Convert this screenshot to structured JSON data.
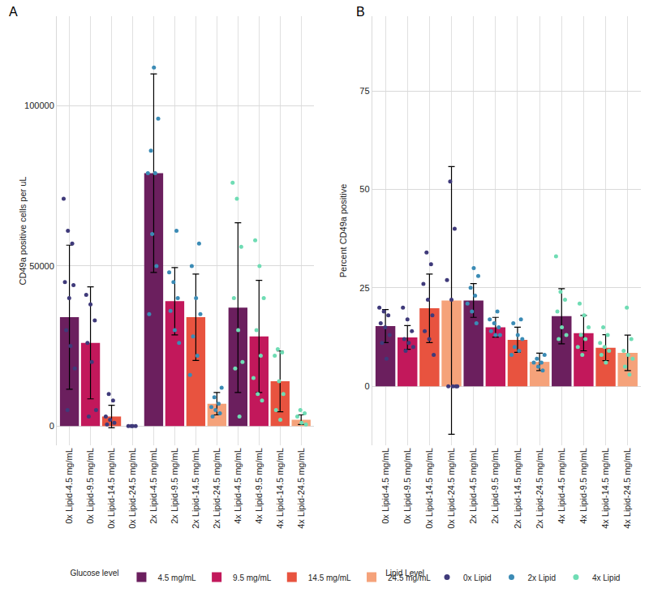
{
  "chart_data": [
    {
      "type": "bar",
      "title": "A",
      "categories": [
        "0x Lipid-4.5 mg/mL",
        "0x Lipid-9.5 mg/mL",
        "0x Lipid-14.5 mg/mL",
        "0x Lipid-24.5 mg/mL",
        "2x Lipid-4.5 mg/mL",
        "2x Lipid-9.5 mg/mL",
        "2x Lipid-14.5 mg/mL",
        "2x Lipid-24.5 mg/mL",
        "4x Lipid-4.5 mg/mL",
        "4x Lipid-9.5 mg/mL",
        "4x Lipid-14.5 mg/mL",
        "4x Lipid-24.5 mg/mL"
      ],
      "values": [
        34000,
        26000,
        3000,
        0,
        79000,
        39000,
        34000,
        7000,
        37000,
        28000,
        14000,
        2000
      ],
      "error": [
        22500,
        17500,
        3500,
        200,
        31000,
        10500,
        13500,
        3500,
        26500,
        17500,
        9500,
        1500
      ],
      "colors": [
        "#6b1f5e",
        "#c2185b",
        "#e8533f",
        "#f5a27a",
        "#6b1f5e",
        "#c2185b",
        "#e8533f",
        "#f5a27a",
        "#6b1f5e",
        "#c2185b",
        "#e8533f",
        "#f5a27a"
      ],
      "points": [
        [
          71000,
          61000,
          57000,
          45000,
          40000,
          44000,
          30000,
          25000,
          18000,
          5000
        ],
        [
          41000,
          38000,
          33000,
          26000,
          20000,
          5000,
          3000
        ],
        [
          10000,
          8000,
          3000,
          2000,
          1000,
          500
        ],
        [
          0,
          0,
          0,
          0
        ],
        [
          112000,
          96000,
          86000,
          79000,
          79000,
          60000,
          50000,
          35000
        ],
        [
          61000,
          48000,
          45000,
          40000,
          36000,
          30000,
          26000
        ],
        [
          57000,
          50000,
          40000,
          35000,
          28000,
          22000,
          16000
        ],
        [
          12000,
          9000,
          7000,
          6000,
          5000,
          4000,
          3000
        ],
        [
          76000,
          71000,
          56000,
          40000,
          30000,
          20000,
          18000,
          3000
        ],
        [
          58000,
          50000,
          40000,
          30000,
          22000,
          15000,
          10000,
          8000
        ],
        [
          24000,
          23000,
          22000,
          14000,
          10000,
          5000,
          2000
        ],
        [
          5000,
          4000,
          3000,
          1000,
          500
        ]
      ],
      "point_colors": [
        "#3f3a7a",
        "#3f3a7a",
        "#3f3a7a",
        "#3f3a7a",
        "#3b8bb5",
        "#3b8bb5",
        "#3b8bb5",
        "#3b8bb5",
        "#6fdcb4",
        "#6fdcb4",
        "#6fdcb4",
        "#6fdcb4"
      ],
      "y_label": "CD49a positive cells per uL",
      "ylim": [
        -6000,
        128000
      ],
      "yticks": [
        0,
        50000,
        100000
      ],
      "grid": true
    },
    {
      "type": "bar",
      "title": "B",
      "categories": [
        "0x Lipid-4.5 mg/mL",
        "0x Lipid-9.5 mg/mL",
        "0x Lipid-14.5 mg/mL",
        "0x Lipid-24.5 mg/mL",
        "2x Lipid-4.5 mg/mL",
        "2x Lipid-9.5 mg/mL",
        "2x Lipid-14.5 mg/mL",
        "2x Lipid-24.5 mg/mL",
        "4x Lipid-4.5 mg/mL",
        "4x Lipid-9.5 mg/mL",
        "4x Lipid-14.5 mg/mL",
        "4x Lipid-24.5 mg/mL"
      ],
      "values": [
        15.3,
        12.4,
        19.8,
        21.8,
        21.8,
        15,
        11.8,
        6.2,
        17.8,
        13.5,
        9.8,
        8.5
      ],
      "error": [
        4.2,
        3,
        8.7,
        34,
        4.3,
        2.5,
        3.2,
        2.2,
        7,
        4.5,
        3.3,
        4.5
      ],
      "colors": [
        "#6b1f5e",
        "#c2185b",
        "#e8533f",
        "#f5a27a",
        "#6b1f5e",
        "#c2185b",
        "#e8533f",
        "#f5a27a",
        "#6b1f5e",
        "#c2185b",
        "#e8533f",
        "#f5a27a"
      ],
      "points": [
        [
          20,
          19,
          18,
          16,
          15,
          13,
          11,
          7
        ],
        [
          20,
          17,
          14,
          12,
          11,
          10,
          9
        ],
        [
          34,
          31,
          26,
          22,
          18,
          14,
          12,
          8
        ],
        [
          52,
          40,
          27,
          22,
          0,
          0,
          0,
          0
        ],
        [
          30,
          28,
          25,
          23,
          21,
          19,
          16
        ],
        [
          19,
          17,
          16,
          15,
          14,
          13,
          13
        ],
        [
          17,
          16,
          13,
          12,
          10,
          9,
          8
        ],
        [
          8,
          7,
          6,
          6,
          5,
          4
        ],
        [
          33,
          24,
          22,
          19,
          15,
          13,
          12
        ],
        [
          21,
          18,
          15,
          13,
          12,
          10,
          8
        ],
        [
          15,
          13,
          11,
          10,
          9,
          8,
          6
        ],
        [
          20,
          12,
          9,
          8,
          7,
          5,
          3
        ]
      ],
      "point_colors": [
        "#3f3a7a",
        "#3f3a7a",
        "#3f3a7a",
        "#3f3a7a",
        "#3b8bb5",
        "#3b8bb5",
        "#3b8bb5",
        "#3b8bb5",
        "#6fdcb4",
        "#6fdcb4",
        "#6fdcb4",
        "#6fdcb4"
      ],
      "y_label": "Percent CD49a positive",
      "ylim": [
        -15,
        94
      ],
      "yticks": [
        0,
        25,
        50,
        75
      ],
      "grid": true
    }
  ],
  "legends": [
    {
      "title": "Glucose level",
      "type": "bar",
      "items": [
        {
          "name": "4.5 mg/mL",
          "color": "#6b1f5e"
        },
        {
          "name": "9.5 mg/mL",
          "color": "#c2185b"
        },
        {
          "name": "14.5 mg/mL",
          "color": "#e8533f"
        },
        {
          "name": "24.5 mg/mL",
          "color": "#f5a27a"
        }
      ]
    },
    {
      "title": "Lipid Level",
      "type": "scatter",
      "items": [
        {
          "name": "0x Lipid",
          "color": "#3f3a7a"
        },
        {
          "name": "2x Lipid",
          "color": "#3b8bb5"
        },
        {
          "name": "4x Lipid",
          "color": "#6fdcb4"
        }
      ]
    }
  ]
}
